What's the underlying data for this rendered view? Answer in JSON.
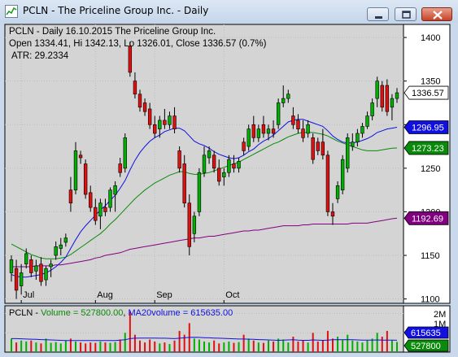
{
  "window": {
    "title": "PCLN - The Priceline Group Inc. - Daily",
    "buttons": [
      "minimize",
      "restore",
      "close"
    ]
  },
  "price_panel": {
    "header_line1": "PCLN - Daily 16.10.2015  The Priceline Group Inc.",
    "header_line2": "Open 1334.41, Hi 1342.13, Lo 1326.01, Close 1336.57 (0.7%)",
    "header_line3": "ATR: 29.2334",
    "axis_labels": [
      "1400",
      "1350",
      "1300",
      "1250",
      "1200",
      "1150",
      "1100"
    ],
    "month_labels": [
      "Jul",
      "Aug",
      "Sep",
      "Oct"
    ],
    "price_tags": [
      {
        "text": "1336.57",
        "bg": "#ffffff",
        "fg": "#000000"
      },
      {
        "text": "1296.95",
        "bg": "#1010e0",
        "fg": "#ffffff"
      },
      {
        "text": "1273.23",
        "bg": "#0a8a0a",
        "fg": "#ffffff"
      },
      {
        "text": "1192.69",
        "bg": "#800080",
        "fg": "#ffffff"
      }
    ]
  },
  "volume_panel": {
    "prefix": "PCLN - ",
    "volume_text": "Volume = 527800.00",
    "ma_text": "MA20volume = 615635.00",
    "axis_labels": [
      "2M",
      "1M"
    ],
    "tags": [
      {
        "text": "615635",
        "bg": "#1010e0",
        "fg": "#ffffff"
      },
      {
        "text": "527800",
        "bg": "#0a8a0a",
        "fg": "#ffffff"
      }
    ]
  },
  "colors": {
    "up": "#00b000",
    "down": "#e01010",
    "ma_blue": "#1010e0",
    "ma_green": "#0a8a0a",
    "ma_purple": "#800080",
    "chart_bg": "#d4d4d4"
  },
  "chart_data": {
    "type": "candlestick",
    "symbol": "PCLN",
    "ylim": [
      1095,
      1415
    ],
    "yticks": [
      1100,
      1150,
      1200,
      1250,
      1300,
      1350,
      1400
    ],
    "month_ticks": {
      "Jul": 2,
      "Aug": 17,
      "Sep": 29,
      "Oct": 43
    },
    "candles": [
      {
        "o": 1130,
        "h": 1150,
        "l": 1120,
        "c": 1145
      },
      {
        "o": 1135,
        "h": 1145,
        "l": 1100,
        "c": 1110
      },
      {
        "o": 1115,
        "h": 1140,
        "l": 1105,
        "c": 1130
      },
      {
        "o": 1140,
        "h": 1158,
        "l": 1135,
        "c": 1152
      },
      {
        "o": 1145,
        "h": 1150,
        "l": 1125,
        "c": 1130
      },
      {
        "o": 1132,
        "h": 1145,
        "l": 1122,
        "c": 1138
      },
      {
        "o": 1140,
        "h": 1148,
        "l": 1115,
        "c": 1120
      },
      {
        "o": 1122,
        "h": 1138,
        "l": 1115,
        "c": 1135
      },
      {
        "o": 1137,
        "h": 1145,
        "l": 1125,
        "c": 1140
      },
      {
        "o": 1150,
        "h": 1166,
        "l": 1145,
        "c": 1160
      },
      {
        "o": 1158,
        "h": 1170,
        "l": 1150,
        "c": 1162
      },
      {
        "o": 1165,
        "h": 1175,
        "l": 1160,
        "c": 1170
      },
      {
        "o": 1225,
        "h": 1240,
        "l": 1200,
        "c": 1210
      },
      {
        "o": 1225,
        "h": 1280,
        "l": 1220,
        "c": 1270
      },
      {
        "o": 1265,
        "h": 1270,
        "l": 1255,
        "c": 1262
      },
      {
        "o": 1255,
        "h": 1260,
        "l": 1215,
        "c": 1220
      },
      {
        "o": 1222,
        "h": 1230,
        "l": 1200,
        "c": 1205
      },
      {
        "o": 1205,
        "h": 1215,
        "l": 1185,
        "c": 1190
      },
      {
        "o": 1195,
        "h": 1215,
        "l": 1180,
        "c": 1210
      },
      {
        "o": 1205,
        "h": 1215,
        "l": 1195,
        "c": 1200
      },
      {
        "o": 1205,
        "h": 1228,
        "l": 1200,
        "c": 1225
      },
      {
        "o": 1220,
        "h": 1235,
        "l": 1200,
        "c": 1230
      },
      {
        "o": 1255,
        "h": 1262,
        "l": 1240,
        "c": 1245
      },
      {
        "o": 1250,
        "h": 1290,
        "l": 1245,
        "c": 1285
      },
      {
        "o": 1390,
        "h": 1395,
        "l": 1355,
        "c": 1360
      },
      {
        "o": 1350,
        "h": 1360,
        "l": 1330,
        "c": 1335
      },
      {
        "o": 1335,
        "h": 1340,
        "l": 1315,
        "c": 1320
      },
      {
        "o": 1325,
        "h": 1330,
        "l": 1310,
        "c": 1315
      },
      {
        "o": 1318,
        "h": 1325,
        "l": 1295,
        "c": 1300
      },
      {
        "o": 1300,
        "h": 1310,
        "l": 1285,
        "c": 1290
      },
      {
        "o": 1295,
        "h": 1310,
        "l": 1285,
        "c": 1305
      },
      {
        "o": 1305,
        "h": 1318,
        "l": 1295,
        "c": 1300
      },
      {
        "o": 1300,
        "h": 1315,
        "l": 1295,
        "c": 1310
      },
      {
        "o": 1310,
        "h": 1320,
        "l": 1290,
        "c": 1295
      },
      {
        "o": 1270,
        "h": 1275,
        "l": 1245,
        "c": 1250
      },
      {
        "o": 1255,
        "h": 1265,
        "l": 1205,
        "c": 1210
      },
      {
        "o": 1210,
        "h": 1220,
        "l": 1150,
        "c": 1160
      },
      {
        "o": 1175,
        "h": 1200,
        "l": 1165,
        "c": 1195
      },
      {
        "o": 1200,
        "h": 1250,
        "l": 1195,
        "c": 1245
      },
      {
        "o": 1245,
        "h": 1275,
        "l": 1240,
        "c": 1265
      },
      {
        "o": 1262,
        "h": 1275,
        "l": 1255,
        "c": 1270
      },
      {
        "o": 1265,
        "h": 1270,
        "l": 1245,
        "c": 1250
      },
      {
        "o": 1250,
        "h": 1260,
        "l": 1230,
        "c": 1235
      },
      {
        "o": 1240,
        "h": 1250,
        "l": 1230,
        "c": 1245
      },
      {
        "o": 1245,
        "h": 1265,
        "l": 1240,
        "c": 1260
      },
      {
        "o": 1255,
        "h": 1265,
        "l": 1245,
        "c": 1250
      },
      {
        "o": 1250,
        "h": 1262,
        "l": 1245,
        "c": 1258
      },
      {
        "o": 1280,
        "h": 1285,
        "l": 1265,
        "c": 1270
      },
      {
        "o": 1275,
        "h": 1300,
        "l": 1270,
        "c": 1295
      },
      {
        "o": 1300,
        "h": 1310,
        "l": 1280,
        "c": 1285
      },
      {
        "o": 1285,
        "h": 1300,
        "l": 1280,
        "c": 1295
      },
      {
        "o": 1300,
        "h": 1310,
        "l": 1285,
        "c": 1290
      },
      {
        "o": 1290,
        "h": 1300,
        "l": 1282,
        "c": 1295
      },
      {
        "o": 1295,
        "h": 1305,
        "l": 1285,
        "c": 1290
      },
      {
        "o": 1300,
        "h": 1330,
        "l": 1295,
        "c": 1325
      },
      {
        "o": 1325,
        "h": 1345,
        "l": 1320,
        "c": 1330
      },
      {
        "o": 1330,
        "h": 1340,
        "l": 1325,
        "c": 1335
      },
      {
        "o": 1310,
        "h": 1320,
        "l": 1295,
        "c": 1300
      },
      {
        "o": 1305,
        "h": 1312,
        "l": 1290,
        "c": 1295
      },
      {
        "o": 1295,
        "h": 1305,
        "l": 1280,
        "c": 1285
      },
      {
        "o": 1290,
        "h": 1305,
        "l": 1285,
        "c": 1300
      },
      {
        "o": 1285,
        "h": 1290,
        "l": 1255,
        "c": 1260
      },
      {
        "o": 1280,
        "h": 1285,
        "l": 1265,
        "c": 1270
      },
      {
        "o": 1280,
        "h": 1295,
        "l": 1260,
        "c": 1265
      },
      {
        "o": 1265,
        "h": 1270,
        "l": 1195,
        "c": 1200
      },
      {
        "o": 1200,
        "h": 1210,
        "l": 1185,
        "c": 1195
      },
      {
        "o": 1215,
        "h": 1235,
        "l": 1210,
        "c": 1230
      },
      {
        "o": 1225,
        "h": 1265,
        "l": 1220,
        "c": 1260
      },
      {
        "o": 1250,
        "h": 1290,
        "l": 1245,
        "c": 1285
      },
      {
        "o": 1275,
        "h": 1290,
        "l": 1270,
        "c": 1280
      },
      {
        "o": 1280,
        "h": 1295,
        "l": 1275,
        "c": 1290
      },
      {
        "o": 1290,
        "h": 1302,
        "l": 1285,
        "c": 1298
      },
      {
        "o": 1298,
        "h": 1315,
        "l": 1295,
        "c": 1310
      },
      {
        "o": 1310,
        "h": 1330,
        "l": 1305,
        "c": 1325
      },
      {
        "o": 1330,
        "h": 1355,
        "l": 1320,
        "c": 1350
      },
      {
        "o": 1345,
        "h": 1350,
        "l": 1315,
        "c": 1320
      },
      {
        "o": 1345,
        "h": 1352,
        "l": 1310,
        "c": 1315
      },
      {
        "o": 1320,
        "h": 1335,
        "l": 1305,
        "c": 1330
      },
      {
        "o": 1330,
        "h": 1342,
        "l": 1325,
        "c": 1336.57
      }
    ],
    "ma_blue": [
      1128,
      1126,
      1125,
      1125,
      1126,
      1127,
      1128,
      1130,
      1133,
      1137,
      1142,
      1148,
      1158,
      1168,
      1177,
      1184,
      1190,
      1196,
      1202,
      1207,
      1213,
      1219,
      1227,
      1236,
      1248,
      1259,
      1268,
      1275,
      1281,
      1285,
      1288,
      1292,
      1294,
      1296,
      1296,
      1293,
      1287,
      1281,
      1278,
      1276,
      1273,
      1269,
      1266,
      1264,
      1262,
      1261,
      1262,
      1265,
      1269,
      1272,
      1277,
      1281,
      1284,
      1288,
      1293,
      1298,
      1303,
      1305,
      1306,
      1306,
      1304,
      1302,
      1300,
      1298,
      1293,
      1287,
      1283,
      1280,
      1279,
      1279,
      1280,
      1282,
      1284,
      1287,
      1291,
      1293,
      1295,
      1296,
      1296.95
    ],
    "ma_green": [
      1163,
      1160,
      1157,
      1154,
      1151,
      1149,
      1147,
      1146,
      1146,
      1146,
      1147,
      1148,
      1151,
      1155,
      1159,
      1163,
      1167,
      1171,
      1175,
      1180,
      1186,
      1191,
      1197,
      1203,
      1209,
      1215,
      1220,
      1225,
      1229,
      1233,
      1236,
      1239,
      1242,
      1244,
      1246,
      1246,
      1244,
      1243,
      1243,
      1244,
      1245,
      1247,
      1249,
      1251,
      1253,
      1255,
      1257,
      1260,
      1263,
      1266,
      1269,
      1272,
      1275,
      1278,
      1280,
      1283,
      1286,
      1288,
      1290,
      1291,
      1291,
      1291,
      1290,
      1289,
      1287,
      1284,
      1281,
      1279,
      1277,
      1275,
      1273,
      1271,
      1270,
      1270,
      1270,
      1271,
      1272,
      1273,
      1273.23
    ],
    "ma_purple": [
      1137,
      1137,
      1137,
      1137,
      1137,
      1138,
      1138,
      1138,
      1138,
      1139,
      1139,
      1140,
      1141,
      1142,
      1143,
      1144,
      1145,
      1147,
      1148,
      1150,
      1151,
      1152,
      1153,
      1155,
      1157,
      1158,
      1159,
      1160,
      1161,
      1162,
      1163,
      1164,
      1165,
      1166,
      1167,
      1168,
      1169,
      1170,
      1170,
      1171,
      1172,
      1172,
      1173,
      1174,
      1175,
      1176,
      1177,
      1178,
      1178,
      1179,
      1179,
      1180,
      1181,
      1182,
      1183,
      1184,
      1184,
      1184,
      1184,
      1185,
      1185,
      1186,
      1186,
      1186,
      1186,
      1186,
      1186,
      1186,
      1186,
      1187,
      1187,
      1187,
      1187,
      1188,
      1189,
      1190,
      1191,
      1192,
      1192.69
    ],
    "volume_ylim": [
      0,
      2400000
    ],
    "volume": [
      700000,
      500000,
      600000,
      550000,
      600000,
      500000,
      450000,
      700000,
      480000,
      520000,
      450000,
      600000,
      700000,
      550000,
      500000,
      450000,
      500000,
      480000,
      550000,
      500000,
      480000,
      520000,
      650000,
      1000000,
      2100000,
      900000,
      600000,
      500000,
      650000,
      550000,
      450000,
      500000,
      420000,
      600000,
      1100000,
      900000,
      1500000,
      700000,
      650000,
      550000,
      500000,
      600000,
      450000,
      500000,
      550000,
      480000,
      520000,
      900000,
      700000,
      600000,
      500000,
      480000,
      600000,
      550000,
      700000,
      650000,
      500000,
      800000,
      550000,
      600000,
      500000,
      1000000,
      550000,
      600000,
      1100000,
      700000,
      800000,
      650000,
      900000,
      600000,
      550000,
      500000,
      600000,
      700000,
      1000000,
      800000,
      1100000,
      600000,
      527800
    ],
    "volume_ma": [
      700000,
      700000,
      690000,
      680000,
      670000,
      660000,
      650000,
      640000,
      630000,
      620000,
      610000,
      600000,
      600000,
      600000,
      600000,
      600000,
      600000,
      600000,
      600000,
      600000,
      600000,
      600000,
      620000,
      640000,
      700000,
      720000,
      730000,
      730000,
      730000,
      730000,
      720000,
      720000,
      710000,
      700000,
      720000,
      740000,
      760000,
      770000,
      760000,
      750000,
      740000,
      730000,
      720000,
      710000,
      700000,
      690000,
      680000,
      680000,
      670000,
      660000,
      650000,
      640000,
      630000,
      620000,
      610000,
      620000,
      630000,
      640000,
      620000,
      610000,
      610000,
      630000,
      620000,
      610000,
      620000,
      640000,
      650000,
      640000,
      650000,
      640000,
      630000,
      620000,
      620000,
      620000,
      630000,
      620000,
      625000,
      620000,
      615635
    ]
  }
}
